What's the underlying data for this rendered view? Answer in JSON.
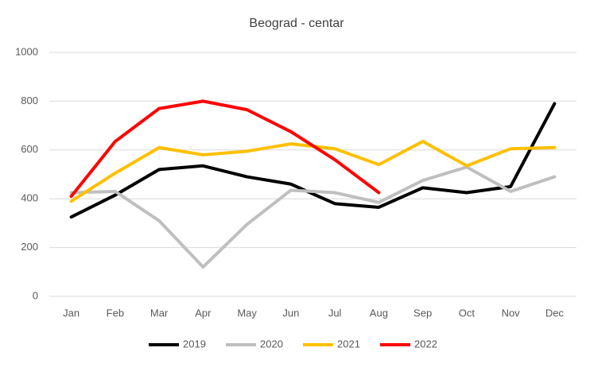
{
  "chart_data": {
    "type": "line",
    "title": "Beograd - centar",
    "categories": [
      "Jan",
      "Feb",
      "Mar",
      "Apr",
      "May",
      "Jun",
      "Jul",
      "Aug",
      "Sep",
      "Oct",
      "Nov",
      "Dec"
    ],
    "series": [
      {
        "name": "2019",
        "color": "#000000",
        "values": [
          325,
          415,
          520,
          535,
          490,
          460,
          380,
          365,
          445,
          425,
          450,
          790
        ]
      },
      {
        "name": "2020",
        "color": "#bfbfbf",
        "values": [
          425,
          430,
          310,
          120,
          295,
          435,
          425,
          385,
          475,
          530,
          430,
          490
        ]
      },
      {
        "name": "2021",
        "color": "#ffc000",
        "values": [
          390,
          505,
          610,
          580,
          595,
          625,
          605,
          540,
          635,
          535,
          605,
          610
        ]
      },
      {
        "name": "2022",
        "color": "#ff0000",
        "values": [
          410,
          635,
          770,
          800,
          765,
          675,
          560,
          425,
          null,
          null,
          null,
          null
        ]
      }
    ],
    "ylim": [
      0,
      1000
    ],
    "yticks": [
      0,
      200,
      400,
      600,
      800,
      1000
    ],
    "grid": true,
    "legend": "bottom"
  }
}
